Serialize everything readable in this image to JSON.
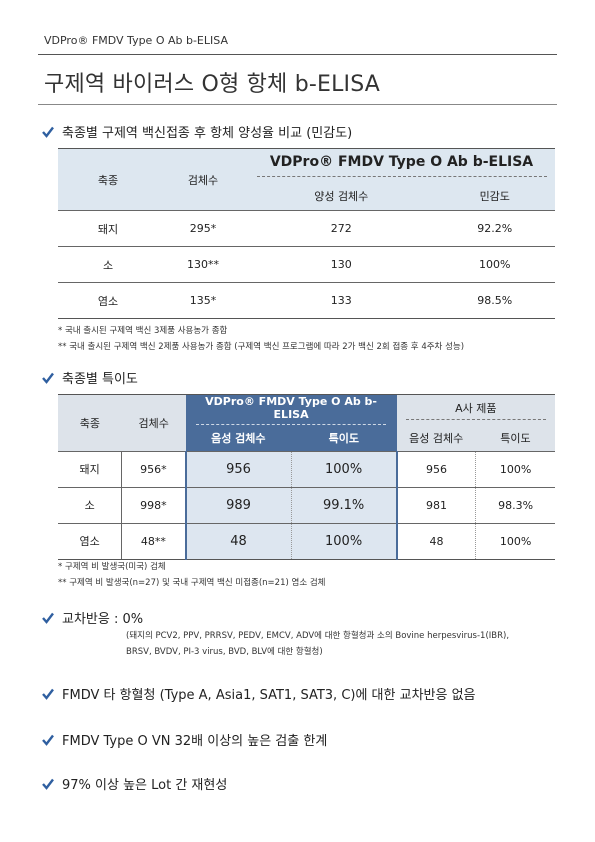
{
  "header": {
    "product": "VDPro® FMDV Type O Ab b-ELISA"
  },
  "title": "구제역 바이러스 O형 항체 b-ELISA",
  "section1": {
    "heading": "축종별 구제역 백신접종 후 항체 양성율 비교 (민감도)",
    "table": {
      "col_species": "축종",
      "col_count": "검체수",
      "group": "VDPro® FMDV Type O Ab b-ELISA",
      "col_positive": "양성 검체수",
      "col_sensitivity": "민감도",
      "rows": [
        {
          "species": "돼지",
          "count": "295*",
          "positive": "272",
          "sensitivity": "92.2%"
        },
        {
          "species": "소",
          "count": "130**",
          "positive": "130",
          "sensitivity": "100%"
        },
        {
          "species": "염소",
          "count": "135*",
          "positive": "133",
          "sensitivity": "98.5%"
        }
      ]
    },
    "notes": [
      "* 국내 출시된 구제역 백신 3제품 사용농가 종합",
      "** 국내 출시된 구제역 백신 2제품 사용농가 종합 (구제역 백신 프로그램에 따라 2가 백신 2회 접종 후 4주차 성능)"
    ]
  },
  "section2": {
    "heading": "축종별 특이도",
    "table": {
      "col_species": "축종",
      "col_count": "검체수",
      "group_a": "VDPro® FMDV Type O Ab b-ELISA",
      "group_b": "A사 제품",
      "col_negative": "음성 검체수",
      "col_specificity": "특이도",
      "rows": [
        {
          "species": "돼지",
          "count": "956*",
          "a_neg": "956",
          "a_spec": "100%",
          "b_neg": "956",
          "b_spec": "100%"
        },
        {
          "species": "소",
          "count": "998*",
          "a_neg": "989",
          "a_spec": "99.1%",
          "b_neg": "981",
          "b_spec": "98.3%"
        },
        {
          "species": "염소",
          "count": "48**",
          "a_neg": "48",
          "a_spec": "100%",
          "b_neg": "48",
          "b_spec": "100%"
        }
      ]
    },
    "notes": [
      "* 구제역 비 발생국(미국) 검체",
      "** 구제역 비 발생국(n=27) 및 국내 구제역 백신 미접종(n=21) 염소 검체"
    ]
  },
  "section3": {
    "heading": "교차반응 : 0%",
    "lines": [
      "(돼지의 PCV2, PPV, PRRSV, PEDV, EMCV, ADV에 대한 항혈청과 소의 Bovine herpesvirus-1(IBR),",
      "BRSV, BVDV, PI-3 virus, BVD, BLV에 대한 항혈청)"
    ]
  },
  "section4": {
    "heading": "FMDV 타 항혈청 (Type A, Asia1, SAT1, SAT3, C)에 대한 교차반응 없음"
  },
  "section5": {
    "heading": "FMDV Type O VN 32배 이상의 높은 검출 한계"
  },
  "section6": {
    "heading": "97% 이상 높은 Lot 간 재현성"
  },
  "colors": {
    "accent": "#4a6c9a",
    "header_fill": "#dde7f0",
    "check": "#2f5fa0"
  }
}
